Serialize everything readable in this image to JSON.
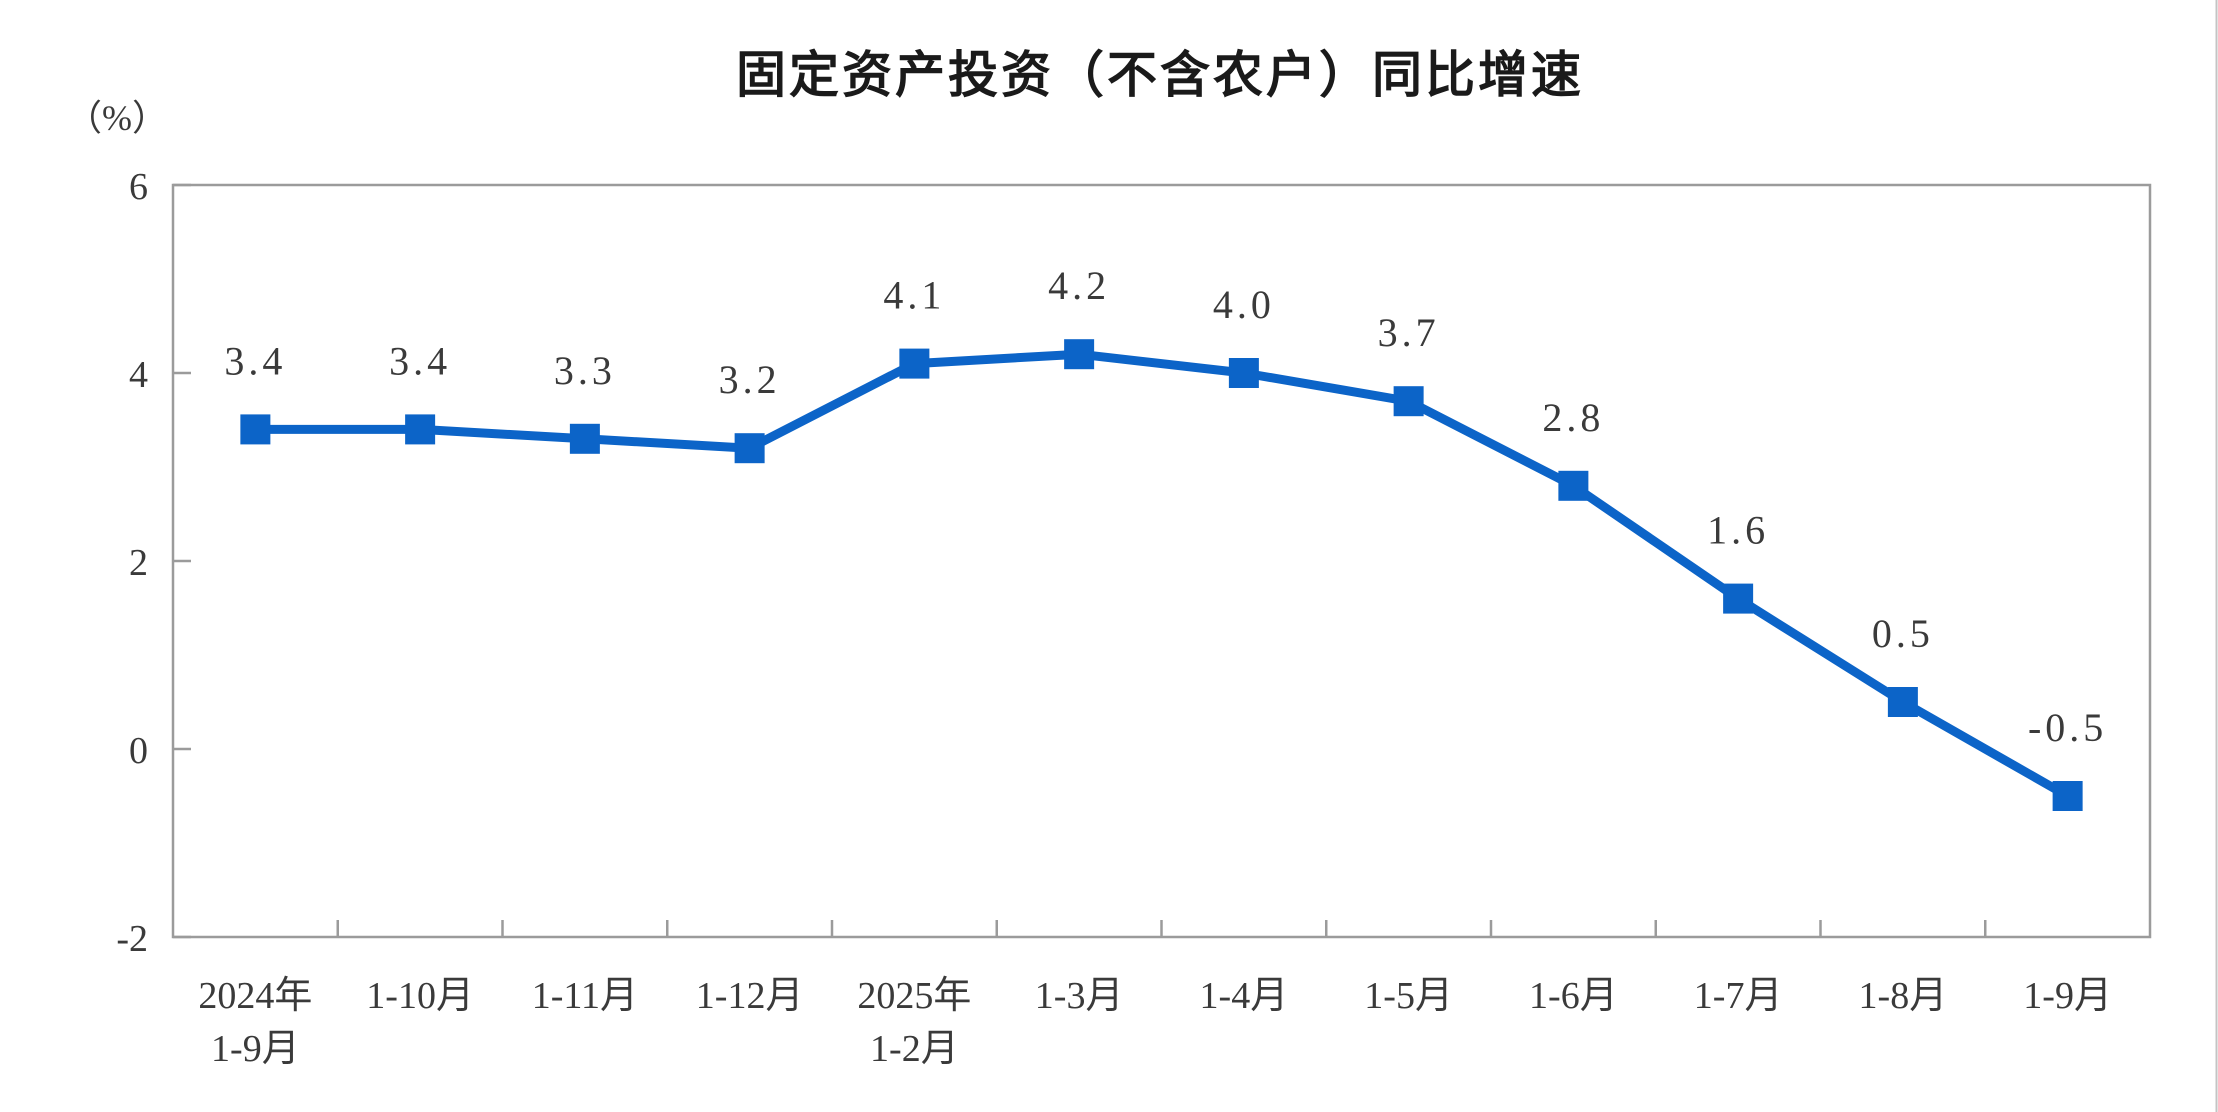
{
  "page": {
    "background": "#ffffff",
    "right_edge_border_color": "#c4c4c4"
  },
  "chart_data": {
    "type": "line",
    "title": "固定资产投资（不含农户）同比增速",
    "unit_label": "（%）",
    "categories": [
      "2024年\n1-9月",
      "1-10月",
      "1-11月",
      "1-12月",
      "2025年\n1-2月",
      "1-3月",
      "1-4月",
      "1-5月",
      "1-6月",
      "1-7月",
      "1-8月",
      "1-9月"
    ],
    "values": [
      3.4,
      3.4,
      3.3,
      3.2,
      4.1,
      4.2,
      4.0,
      3.7,
      2.8,
      1.6,
      0.5,
      -0.5
    ],
    "point_labels": [
      "3.4",
      "3.4",
      "3.3",
      "3.2",
      "4.1",
      "4.2",
      "4.0",
      "3.7",
      "2.8",
      "1.6",
      "0.5",
      "-0.5"
    ],
    "ylim": [
      -2,
      6
    ],
    "yticks": [
      6,
      4,
      2,
      0,
      -2
    ],
    "ytick_labels": [
      "6",
      "4",
      "2",
      "0",
      "-2"
    ],
    "grid": false,
    "legend_position": "none",
    "marker": "square",
    "colors": {
      "line": "#0C64C8",
      "marker": "#0C64C8",
      "axis": "#9B9B9B",
      "text": "#3A3A3A",
      "title": "#1A1A1A"
    }
  }
}
